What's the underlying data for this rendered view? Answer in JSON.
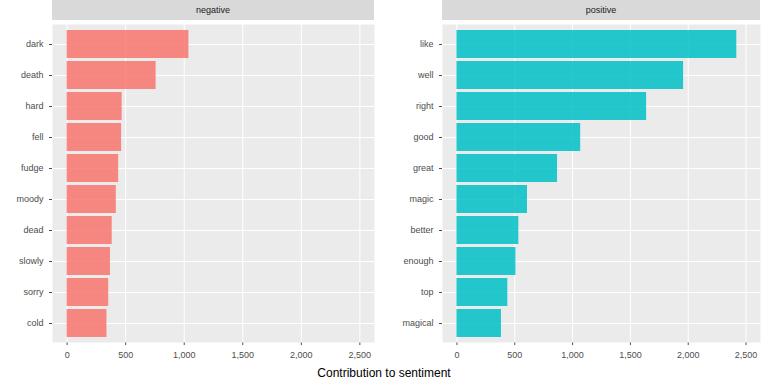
{
  "chart_data": [
    {
      "type": "bar",
      "orientation": "horizontal",
      "title": "negative",
      "xlabel": "Contribution to sentiment",
      "categories": [
        "dark",
        "death",
        "hard",
        "fell",
        "fudge",
        "moody",
        "dead",
        "slowly",
        "sorry",
        "cold"
      ],
      "values": [
        1040,
        760,
        470,
        465,
        440,
        420,
        385,
        370,
        355,
        340
      ],
      "color": "#F8766D",
      "xlim": [
        -125,
        2625
      ],
      "xticks": [
        0,
        500,
        1000,
        1500,
        2000,
        2500
      ],
      "grid": true
    },
    {
      "type": "bar",
      "orientation": "horizontal",
      "title": "positive",
      "categories": [
        "like",
        "well",
        "right",
        "good",
        "great",
        "magic",
        "better",
        "enough",
        "top",
        "magical"
      ],
      "values": [
        2420,
        1960,
        1640,
        1070,
        870,
        610,
        535,
        510,
        440,
        385
      ],
      "color": "#00BFC4",
      "xlim": [
        -125,
        2625
      ],
      "xticks": [
        0,
        500,
        1000,
        1500,
        2000,
        2500
      ],
      "grid": true
    }
  ]
}
